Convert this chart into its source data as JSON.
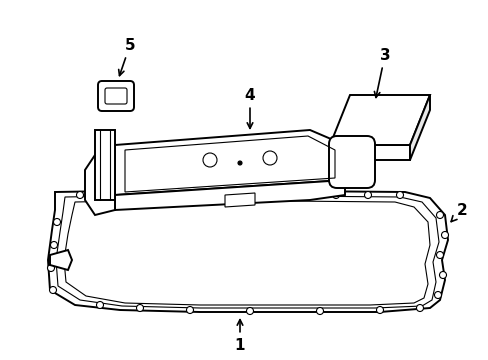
{
  "bg_color": "#ffffff",
  "line_color": "#000000",
  "lw": 1.4,
  "tlw": 0.8,
  "font_size": 11
}
